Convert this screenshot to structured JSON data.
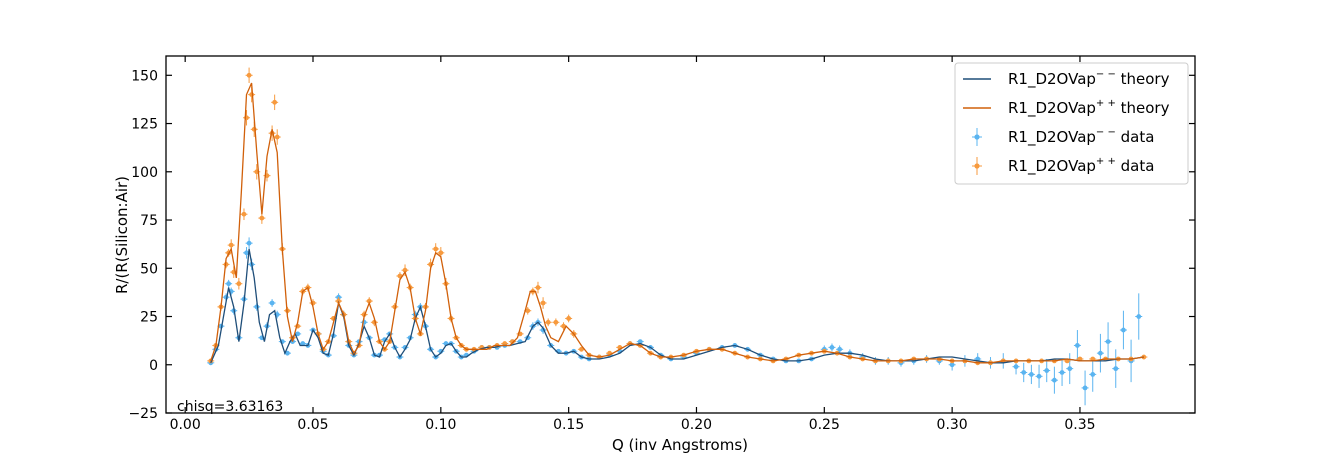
{
  "chart_data": {
    "type": "scatter",
    "title": "",
    "xlabel": "Q (inv Angstroms)",
    "ylabel": "R/(R(Silicon:Air)",
    "xlim": [
      -0.0075,
      0.395
    ],
    "ylim": [
      -25,
      160
    ],
    "xticks": [
      0.0,
      0.05,
      0.1,
      0.15,
      0.2,
      0.25,
      0.3,
      0.35
    ],
    "xtick_labels": [
      "0.00",
      "0.05",
      "0.10",
      "0.15",
      "0.20",
      "0.25",
      "0.30",
      "0.35"
    ],
    "yticks": [
      -25,
      0,
      25,
      50,
      75,
      100,
      125,
      150
    ],
    "ytick_labels": [
      "−25",
      "0",
      "25",
      "50",
      "75",
      "100",
      "125",
      "150"
    ],
    "grid": false,
    "legend_position": "top-right",
    "annotation": "chisq=3.63163",
    "colors": {
      "minus_theory": "#1f4e79",
      "plus_theory": "#d1600a",
      "minus_data": "#5ab4f0",
      "plus_data": "#f79a3e"
    },
    "legend": [
      {
        "label": "R1_D2OVap",
        "sup": "− −",
        "suffix": " theory",
        "kind": "line",
        "color": "#1f4e79"
      },
      {
        "label": "R1_D2OVap",
        "sup": "+ +",
        "suffix": " theory",
        "kind": "line",
        "color": "#d1600a"
      },
      {
        "label": "R1_D2OVap",
        "sup": "− −",
        "suffix": " data",
        "kind": "errorbar",
        "color": "#5ab4f0"
      },
      {
        "label": "R1_D2OVap",
        "sup": "+ +",
        "suffix": " data",
        "kind": "errorbar",
        "color": "#f79a3e"
      }
    ],
    "series": [
      {
        "name": "R1_D2OVap−− theory",
        "kind": "line",
        "x": [
          0.01,
          0.013,
          0.015,
          0.017,
          0.019,
          0.021,
          0.023,
          0.025,
          0.027,
          0.029,
          0.031,
          0.033,
          0.035,
          0.037,
          0.039,
          0.041,
          0.043,
          0.045,
          0.048,
          0.05,
          0.052,
          0.054,
          0.056,
          0.058,
          0.06,
          0.062,
          0.064,
          0.066,
          0.068,
          0.07,
          0.072,
          0.074,
          0.076,
          0.078,
          0.08,
          0.082,
          0.084,
          0.086,
          0.088,
          0.09,
          0.092,
          0.094,
          0.096,
          0.098,
          0.1,
          0.102,
          0.104,
          0.106,
          0.108,
          0.11,
          0.112,
          0.115,
          0.118,
          0.121,
          0.124,
          0.127,
          0.13,
          0.133,
          0.136,
          0.138,
          0.14,
          0.143,
          0.146,
          0.149,
          0.152,
          0.155,
          0.158,
          0.162,
          0.166,
          0.17,
          0.174,
          0.178,
          0.182,
          0.186,
          0.19,
          0.195,
          0.2,
          0.205,
          0.21,
          0.215,
          0.22,
          0.225,
          0.23,
          0.235,
          0.24,
          0.245,
          0.25,
          0.255,
          0.26,
          0.265,
          0.27,
          0.275,
          0.28,
          0.285,
          0.29,
          0.295,
          0.3,
          0.305,
          0.31,
          0.315,
          0.32,
          0.325,
          0.33,
          0.335,
          0.34,
          0.345,
          0.35,
          0.355,
          0.36,
          0.365,
          0.37,
          0.375
        ],
        "y": [
          1,
          10,
          25,
          40,
          30,
          12,
          32,
          60,
          45,
          22,
          12,
          26,
          28,
          14,
          6,
          12,
          16,
          10,
          10,
          18,
          14,
          6,
          5,
          16,
          32,
          25,
          10,
          5,
          11,
          20,
          14,
          5,
          4,
          12,
          16,
          9,
          4,
          8,
          13,
          24,
          30,
          20,
          8,
          4,
          6,
          10,
          11,
          7,
          4,
          4,
          6,
          8,
          9,
          9,
          10,
          10,
          11,
          12,
          20,
          22,
          19,
          10,
          6,
          6,
          7,
          4,
          3,
          3,
          4,
          6,
          10,
          11,
          9,
          5,
          3,
          3,
          5,
          7,
          9,
          10,
          8,
          5,
          3,
          2,
          2,
          3,
          5,
          6,
          6,
          5,
          3,
          2,
          2,
          2,
          3,
          4,
          4,
          3,
          2,
          1,
          1,
          2,
          2,
          2,
          3,
          3,
          2,
          2,
          2,
          3,
          3,
          4
        ]
      },
      {
        "name": "R1_D2OVap++ theory",
        "kind": "line",
        "x": [
          0.01,
          0.012,
          0.014,
          0.016,
          0.018,
          0.02,
          0.022,
          0.024,
          0.026,
          0.028,
          0.03,
          0.032,
          0.034,
          0.036,
          0.038,
          0.04,
          0.042,
          0.044,
          0.046,
          0.048,
          0.05,
          0.052,
          0.054,
          0.056,
          0.058,
          0.06,
          0.062,
          0.064,
          0.066,
          0.068,
          0.07,
          0.072,
          0.074,
          0.076,
          0.078,
          0.08,
          0.082,
          0.084,
          0.086,
          0.088,
          0.09,
          0.092,
          0.094,
          0.096,
          0.098,
          0.1,
          0.102,
          0.104,
          0.106,
          0.108,
          0.11,
          0.112,
          0.115,
          0.118,
          0.121,
          0.124,
          0.127,
          0.13,
          0.133,
          0.135,
          0.137,
          0.139,
          0.141,
          0.143,
          0.146,
          0.149,
          0.152,
          0.155,
          0.158,
          0.162,
          0.166,
          0.17,
          0.174,
          0.178,
          0.182,
          0.186,
          0.19,
          0.195,
          0.2,
          0.205,
          0.21,
          0.215,
          0.22,
          0.225,
          0.23,
          0.235,
          0.24,
          0.245,
          0.25,
          0.255,
          0.26,
          0.265,
          0.27,
          0.275,
          0.28,
          0.285,
          0.29,
          0.295,
          0.3,
          0.305,
          0.31,
          0.315,
          0.32,
          0.325,
          0.33,
          0.335,
          0.34,
          0.345,
          0.35,
          0.355,
          0.36,
          0.365,
          0.37,
          0.375
        ],
        "y": [
          2,
          10,
          30,
          55,
          60,
          45,
          90,
          140,
          146,
          110,
          78,
          108,
          122,
          110,
          60,
          25,
          12,
          22,
          38,
          40,
          30,
          16,
          8,
          12,
          22,
          32,
          26,
          12,
          6,
          10,
          25,
          32,
          24,
          12,
          8,
          12,
          28,
          44,
          48,
          40,
          24,
          16,
          28,
          50,
          58,
          56,
          42,
          24,
          14,
          10,
          8,
          8,
          8,
          8,
          10,
          10,
          10,
          14,
          28,
          38,
          38,
          30,
          20,
          14,
          12,
          20,
          16,
          10,
          5,
          4,
          5,
          8,
          11,
          10,
          6,
          4,
          4,
          5,
          7,
          8,
          8,
          6,
          4,
          3,
          2,
          3,
          5,
          6,
          7,
          6,
          4,
          3,
          2,
          2,
          2,
          3,
          3,
          3,
          2,
          2,
          1,
          1,
          2,
          2,
          2,
          2,
          2,
          3,
          2,
          2,
          3,
          3,
          3,
          4
        ]
      },
      {
        "name": "R1_D2OVap−− data",
        "kind": "scatter",
        "x": [
          0.01,
          0.012,
          0.014,
          0.016,
          0.017,
          0.018,
          0.019,
          0.021,
          0.023,
          0.024,
          0.025,
          0.026,
          0.028,
          0.03,
          0.032,
          0.034,
          0.036,
          0.038,
          0.04,
          0.042,
          0.044,
          0.046,
          0.048,
          0.05,
          0.052,
          0.054,
          0.056,
          0.058,
          0.06,
          0.062,
          0.064,
          0.066,
          0.068,
          0.07,
          0.072,
          0.074,
          0.076,
          0.078,
          0.08,
          0.082,
          0.084,
          0.086,
          0.088,
          0.09,
          0.092,
          0.094,
          0.096,
          0.098,
          0.1,
          0.102,
          0.104,
          0.106,
          0.108,
          0.11,
          0.113,
          0.116,
          0.119,
          0.122,
          0.125,
          0.128,
          0.131,
          0.134,
          0.136,
          0.138,
          0.14,
          0.143,
          0.146,
          0.149,
          0.152,
          0.155,
          0.158,
          0.162,
          0.166,
          0.17,
          0.174,
          0.178,
          0.182,
          0.186,
          0.19,
          0.195,
          0.2,
          0.205,
          0.21,
          0.215,
          0.22,
          0.225,
          0.23,
          0.235,
          0.24,
          0.245,
          0.25,
          0.253,
          0.256,
          0.26,
          0.265,
          0.27,
          0.275,
          0.28,
          0.285,
          0.29,
          0.295,
          0.3,
          0.305,
          0.31,
          0.315,
          0.32,
          0.325,
          0.328,
          0.331,
          0.334,
          0.337,
          0.34,
          0.343,
          0.346,
          0.349,
          0.352,
          0.355,
          0.358,
          0.361,
          0.364,
          0.367,
          0.37,
          0.373
        ],
        "y": [
          1,
          8,
          20,
          35,
          42,
          38,
          28,
          14,
          34,
          58,
          63,
          52,
          30,
          14,
          20,
          32,
          26,
          12,
          6,
          12,
          16,
          11,
          10,
          18,
          16,
          7,
          5,
          15,
          35,
          26,
          10,
          5,
          12,
          22,
          14,
          5,
          5,
          13,
          16,
          9,
          4,
          9,
          14,
          26,
          30,
          20,
          8,
          4,
          7,
          11,
          11,
          7,
          4,
          5,
          7,
          9,
          9,
          9,
          10,
          12,
          12,
          14,
          20,
          22,
          18,
          10,
          7,
          6,
          7,
          4,
          3,
          4,
          5,
          7,
          11,
          12,
          9,
          5,
          3,
          4,
          6,
          8,
          9,
          10,
          8,
          5,
          3,
          2,
          2,
          3,
          8,
          9,
          8,
          6,
          4,
          2,
          2,
          1,
          2,
          3,
          2,
          0,
          2,
          3,
          1,
          2,
          -1,
          -4,
          -5,
          -6,
          -3,
          -8,
          -4,
          -2,
          10,
          -12,
          -5,
          6,
          12,
          -2,
          18,
          2,
          25
        ],
        "yerr": [
          0.5,
          1,
          1,
          2,
          2,
          2,
          2,
          1,
          2,
          3,
          3,
          3,
          2,
          1,
          2,
          2,
          2,
          1,
          1,
          1,
          1,
          1,
          1,
          1,
          1,
          1,
          1,
          1,
          2,
          2,
          1,
          1,
          1,
          2,
          1,
          1,
          1,
          1,
          1,
          1,
          1,
          1,
          1,
          2,
          2,
          2,
          1,
          1,
          1,
          1,
          1,
          1,
          1,
          1,
          1,
          1,
          1,
          1,
          1,
          1,
          1,
          1,
          2,
          2,
          2,
          1,
          1,
          1,
          1,
          1,
          1,
          1,
          1,
          1,
          1,
          1,
          1,
          1,
          1,
          1,
          1,
          1,
          1,
          1,
          1,
          1,
          1,
          1,
          1,
          1,
          2,
          2,
          2,
          2,
          2,
          2,
          2,
          2,
          2,
          2,
          2,
          3,
          3,
          3,
          3,
          4,
          4,
          5,
          5,
          6,
          6,
          7,
          7,
          8,
          8,
          9,
          9,
          10,
          10,
          10,
          10,
          11,
          12
        ]
      },
      {
        "name": "R1_D2OVap++ data",
        "kind": "scatter",
        "x": [
          0.01,
          0.012,
          0.014,
          0.016,
          0.017,
          0.018,
          0.019,
          0.021,
          0.023,
          0.024,
          0.025,
          0.026,
          0.027,
          0.028,
          0.03,
          0.032,
          0.034,
          0.035,
          0.036,
          0.038,
          0.04,
          0.042,
          0.044,
          0.046,
          0.048,
          0.05,
          0.052,
          0.054,
          0.056,
          0.058,
          0.06,
          0.062,
          0.064,
          0.066,
          0.068,
          0.07,
          0.072,
          0.074,
          0.076,
          0.078,
          0.08,
          0.082,
          0.084,
          0.086,
          0.088,
          0.09,
          0.092,
          0.094,
          0.096,
          0.098,
          0.1,
          0.102,
          0.104,
          0.106,
          0.108,
          0.11,
          0.113,
          0.116,
          0.119,
          0.122,
          0.125,
          0.128,
          0.131,
          0.134,
          0.136,
          0.138,
          0.14,
          0.142,
          0.145,
          0.148,
          0.15,
          0.152,
          0.155,
          0.158,
          0.162,
          0.166,
          0.17,
          0.174,
          0.178,
          0.182,
          0.186,
          0.19,
          0.195,
          0.2,
          0.205,
          0.21,
          0.215,
          0.22,
          0.225,
          0.23,
          0.235,
          0.24,
          0.245,
          0.25,
          0.255,
          0.26,
          0.265,
          0.27,
          0.275,
          0.28,
          0.285,
          0.29,
          0.295,
          0.3,
          0.305,
          0.31,
          0.315,
          0.32,
          0.325,
          0.33,
          0.335,
          0.34,
          0.345,
          0.35,
          0.355,
          0.36,
          0.365,
          0.37,
          0.375
        ],
        "y": [
          2,
          10,
          30,
          52,
          58,
          62,
          48,
          42,
          78,
          128,
          150,
          140,
          122,
          100,
          76,
          98,
          120,
          136,
          118,
          60,
          28,
          14,
          20,
          38,
          40,
          32,
          16,
          8,
          12,
          24,
          33,
          26,
          12,
          6,
          10,
          26,
          33,
          22,
          12,
          8,
          12,
          30,
          46,
          49,
          40,
          24,
          16,
          30,
          52,
          60,
          58,
          42,
          24,
          14,
          10,
          8,
          8,
          9,
          9,
          10,
          11,
          12,
          16,
          28,
          38,
          40,
          32,
          22,
          22,
          20,
          24,
          16,
          8,
          5,
          4,
          6,
          9,
          11,
          10,
          6,
          4,
          4,
          5,
          7,
          8,
          8,
          6,
          4,
          3,
          2,
          3,
          5,
          6,
          7,
          6,
          4,
          3,
          2,
          2,
          2,
          3,
          3,
          3,
          2,
          2,
          1,
          1,
          2,
          2,
          2,
          2,
          2,
          2,
          3,
          3,
          3,
          3,
          3,
          4
        ],
        "yerr": [
          0.5,
          1,
          2,
          2,
          2,
          3,
          3,
          3,
          3,
          4,
          4,
          4,
          4,
          4,
          3,
          3,
          4,
          4,
          4,
          3,
          2,
          1,
          1,
          2,
          2,
          2,
          1,
          1,
          1,
          1,
          2,
          2,
          1,
          1,
          1,
          2,
          2,
          2,
          1,
          1,
          1,
          2,
          2,
          3,
          2,
          2,
          1,
          2,
          3,
          3,
          3,
          3,
          2,
          1,
          1,
          1,
          1,
          1,
          1,
          1,
          1,
          1,
          1,
          2,
          2,
          3,
          3,
          2,
          2,
          2,
          2,
          2,
          1,
          1,
          1,
          1,
          1,
          1,
          1,
          1,
          1,
          1,
          1,
          1,
          1,
          1,
          1,
          1,
          1,
          1,
          1,
          1,
          1,
          1,
          1,
          1,
          1,
          1,
          1,
          1,
          1,
          1,
          1,
          1,
          1,
          1,
          1,
          1,
          1,
          1,
          1,
          1,
          1,
          1,
          1,
          1,
          1,
          1,
          1
        ]
      }
    ]
  }
}
